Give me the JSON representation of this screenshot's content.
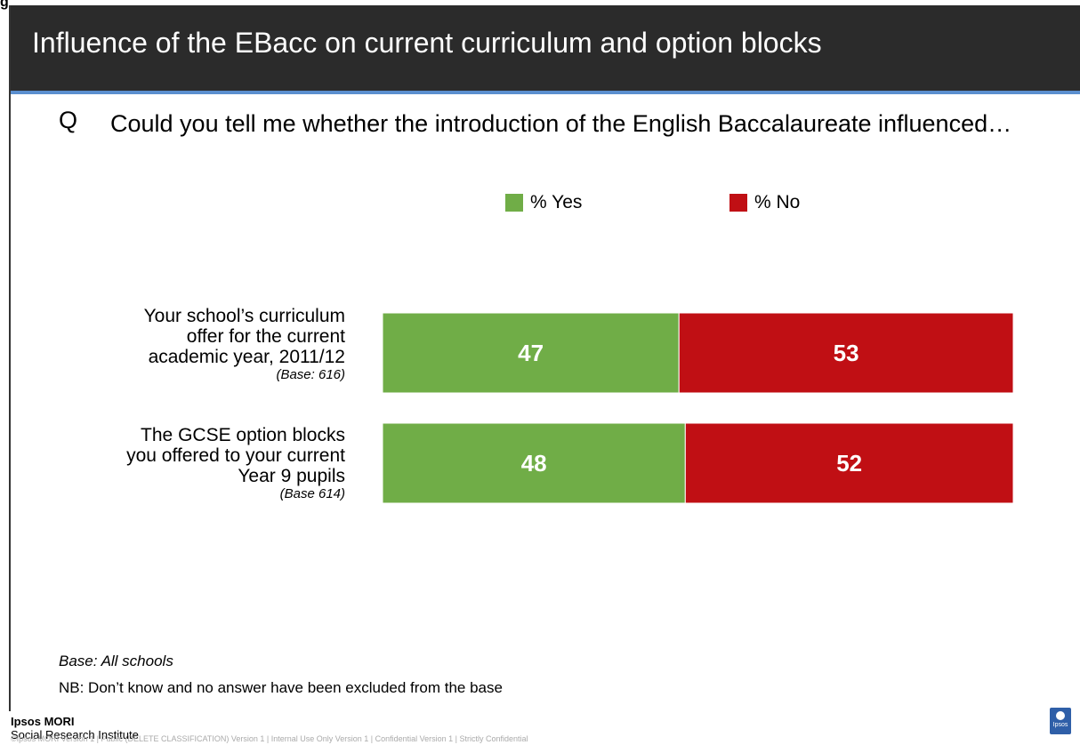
{
  "page": {
    "figure_label": "g",
    "title": "Influence of the EBacc on current curriculum and option blocks",
    "question_marker": "Q",
    "question": "Could you tell me whether the introduction of the English Baccalaureate influenced…",
    "footnote_base": "Base: All schools",
    "footnote_nb": "NB: Don’t know and no answer have been excluded from the base",
    "brand_line1": "Ipsos MORI",
    "brand_line2": "Social Research Institute",
    "classification": "©Ipsos MORI    Version 1 | Public (DELETE CLASSIFICATION)   Version 1 | Internal Use Only   Version 1 | Confidential   Version 1 | Strictly Confidential",
    "logo_text": "Ipsos"
  },
  "chart_data": {
    "type": "bar",
    "orientation": "horizontal",
    "stacked": true,
    "categories": [
      {
        "label_lines": [
          "Your school’s curriculum",
          "offer for the current",
          "academic year, 2011/12"
        ],
        "base": "(Base: 616)"
      },
      {
        "label_lines": [
          "The GCSE option blocks",
          "you offered to your current",
          "Year 9 pupils"
        ],
        "base": "(Base 614)"
      }
    ],
    "series": [
      {
        "name": "% Yes",
        "color": "#70ad47",
        "values": [
          47,
          48
        ]
      },
      {
        "name": "% No",
        "color": "#c00f14",
        "values": [
          53,
          52
        ]
      }
    ],
    "xlim": [
      0,
      100
    ],
    "legend_position": "top",
    "data_labels": true,
    "grid": false
  }
}
